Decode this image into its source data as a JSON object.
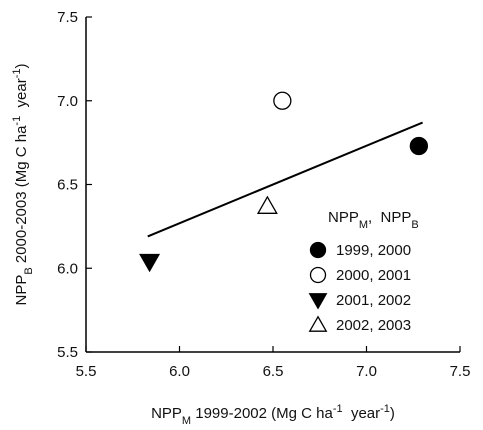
{
  "chart_data": {
    "type": "scatter",
    "xlabel": [
      {
        "text": "NPP"
      },
      {
        "text": "M",
        "script": "sub"
      },
      {
        "text": " 1999-2002 (Mg C ha"
      },
      {
        "text": "-1",
        "script": "sup"
      },
      {
        "text": "  year"
      },
      {
        "text": "-1",
        "script": "sup"
      },
      {
        "text": ")"
      }
    ],
    "ylabel": [
      {
        "text": "NPP"
      },
      {
        "text": "B",
        "script": "sub"
      },
      {
        "text": " 2000-2003 (Mg C ha"
      },
      {
        "text": "-1",
        "script": "sup"
      },
      {
        "text": "  year"
      },
      {
        "text": "-1",
        "script": "sup"
      },
      {
        "text": ")"
      }
    ],
    "legend_title": [
      {
        "text": "NPP"
      },
      {
        "text": "M",
        "script": "sub"
      },
      {
        "text": ",  NPP"
      },
      {
        "text": "B",
        "script": "sub"
      }
    ],
    "legend": "lower right",
    "xlim": [
      5.5,
      7.5
    ],
    "ylim": [
      5.5,
      7.5
    ],
    "xticks": [
      5.5,
      {
        "value": 6,
        "label": "6.0"
      },
      6.5,
      {
        "value": 7,
        "label": "7.0"
      },
      7.5
    ],
    "yticks": [
      5.5,
      {
        "value": 6,
        "label": "6.0"
      },
      6.5,
      {
        "value": 7,
        "label": "7.0"
      },
      7.5
    ],
    "series": [
      {
        "name": "1999, 2000",
        "color": "#000000",
        "marker": "circle",
        "filled": true,
        "x": [
          7.28
        ],
        "values": [
          6.73
        ]
      },
      {
        "name": "2000, 2001",
        "color": "#000000",
        "marker": "circle",
        "filled": false,
        "x": [
          6.55
        ],
        "values": [
          7.0
        ]
      },
      {
        "name": "2001, 2002",
        "color": "#000000",
        "marker": "triangle-down",
        "filled": true,
        "x": [
          5.84
        ],
        "values": [
          6.04
        ]
      },
      {
        "name": "2002, 2003",
        "color": "#000000",
        "marker": "triangle-up",
        "filled": false,
        "x": [
          6.47
        ],
        "values": [
          6.37
        ]
      }
    ],
    "trendline": {
      "color": "#000000",
      "x": [
        5.83,
        7.3
      ],
      "y": [
        6.19,
        6.87
      ]
    }
  }
}
